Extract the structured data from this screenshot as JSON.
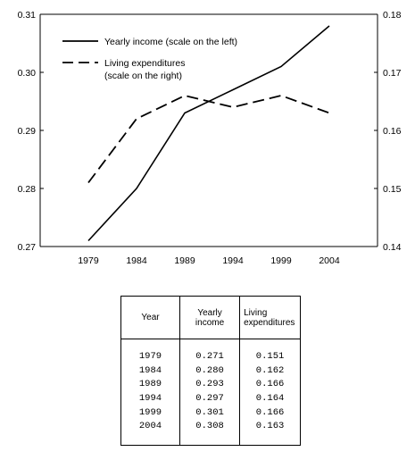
{
  "chart_data": {
    "type": "line",
    "x": [
      "1979",
      "1984",
      "1989",
      "1994",
      "1999",
      "2004"
    ],
    "series": [
      {
        "name": "Yearly income (scale on the left)",
        "axis": "left",
        "style": "solid",
        "values": [
          0.271,
          0.28,
          0.293,
          0.297,
          0.301,
          0.308
        ]
      },
      {
        "name": "Living expenditures (scale on the right)",
        "axis": "right",
        "style": "dashed",
        "values": [
          0.151,
          0.162,
          0.166,
          0.164,
          0.166,
          0.163
        ]
      }
    ],
    "ylim_left": [
      0.27,
      0.31
    ],
    "ylim_right": [
      0.14,
      0.18
    ],
    "left_ticks": [
      "0.27",
      "0.28",
      "0.29",
      "0.30",
      "0.31"
    ],
    "right_ticks": [
      "0.14",
      "0.15",
      "0.16",
      "0.17",
      "0.18"
    ],
    "legend": {
      "placement": "top-left",
      "entries": [
        {
          "lines": [
            "Yearly income (scale on the left)"
          ],
          "style": "solid"
        },
        {
          "lines": [
            "Living expenditures",
            "(scale on the right)"
          ],
          "style": "dashed"
        }
      ]
    },
    "grid": false
  },
  "table": {
    "headers": [
      {
        "lines": [
          "Year"
        ]
      },
      {
        "lines": [
          "Yearly",
          "income"
        ]
      },
      {
        "lines": [
          "Living",
          "expenditures"
        ]
      }
    ],
    "columns": [
      [
        "1979",
        "1984",
        "1989",
        "1994",
        "1999",
        "2004"
      ],
      [
        "0.271",
        "0.280",
        "0.293",
        "0.297",
        "0.301",
        "0.308"
      ],
      [
        "0.151",
        "0.162",
        "0.166",
        "0.164",
        "0.166",
        "0.163"
      ]
    ]
  }
}
